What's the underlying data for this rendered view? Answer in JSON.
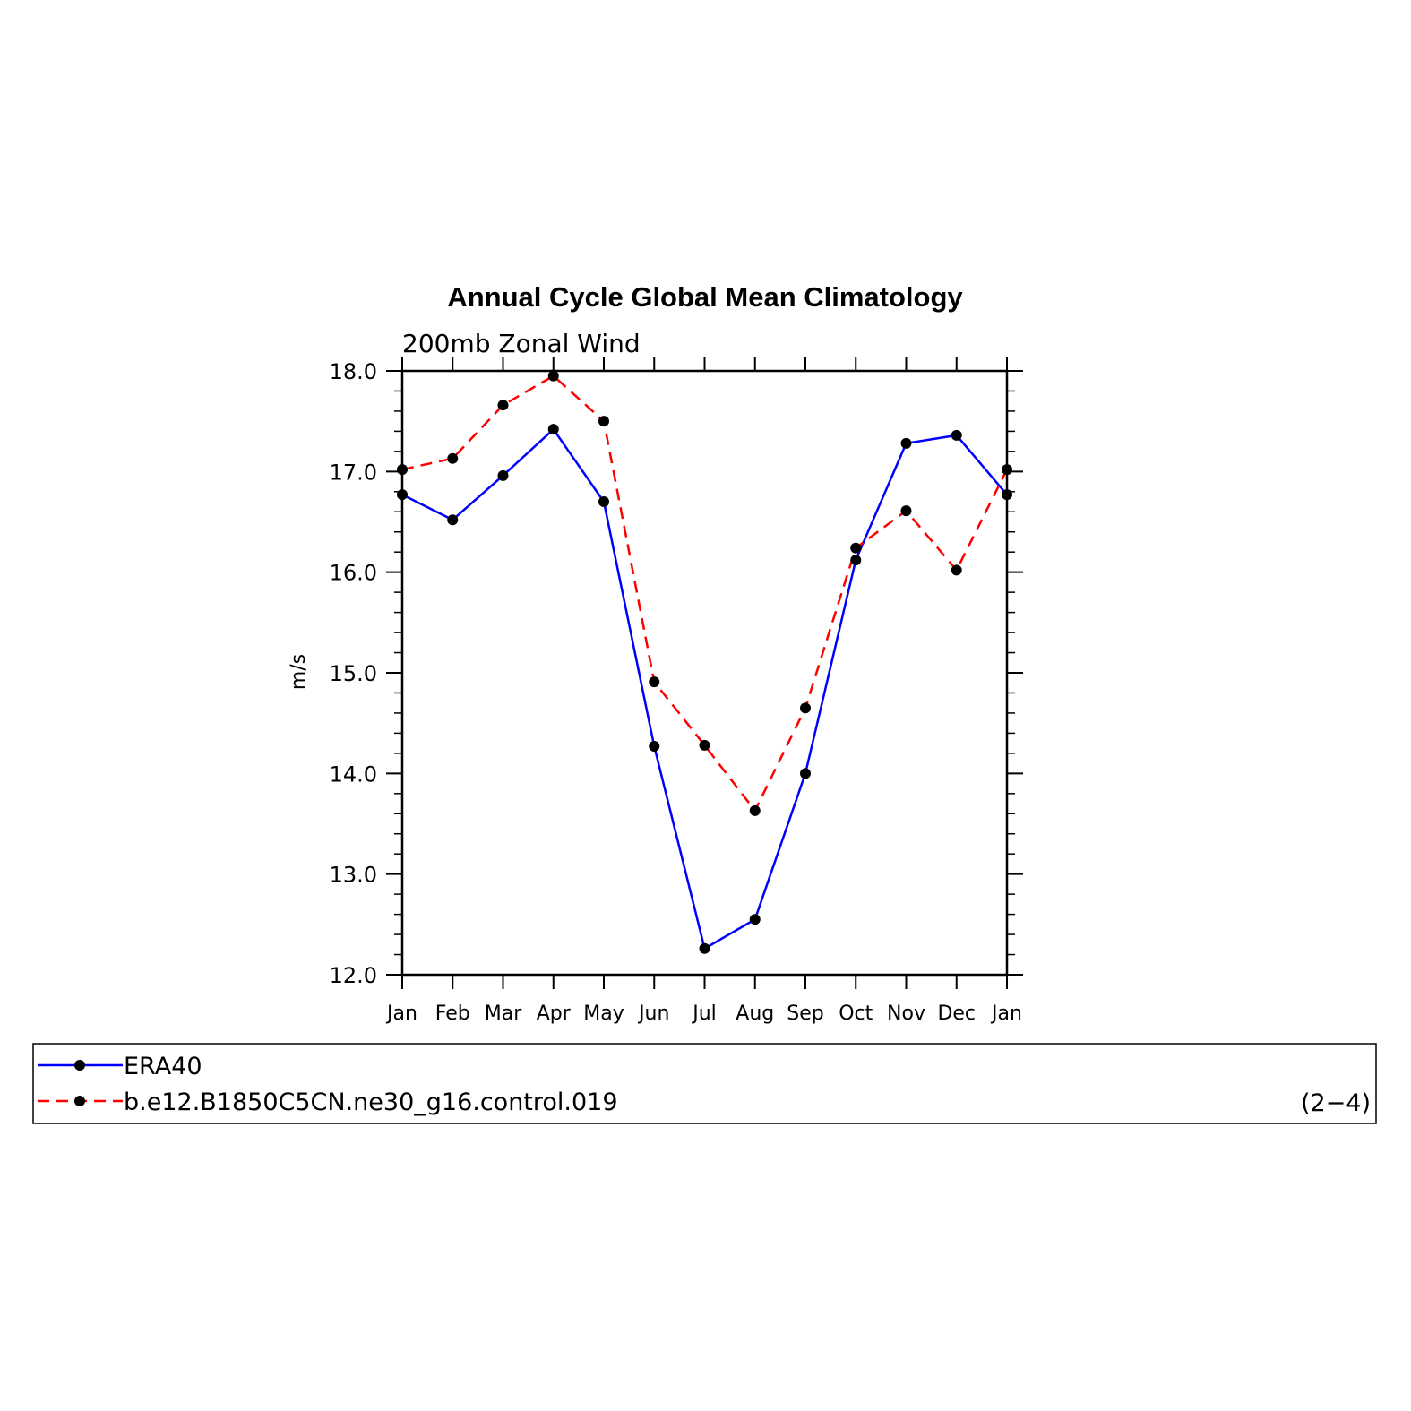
{
  "chart_data": {
    "type": "line",
    "title": "Annual Cycle Global Mean Climatology",
    "subtitle": "200mb Zonal Wind",
    "ylabel": "m/s",
    "xlabel": "",
    "categories": [
      "Jan",
      "Feb",
      "Mar",
      "Apr",
      "May",
      "Jun",
      "Jul",
      "Aug",
      "Sep",
      "Oct",
      "Nov",
      "Dec",
      "Jan"
    ],
    "ylim": [
      12.0,
      18.0
    ],
    "yticks": [
      "12.0",
      "13.0",
      "14.0",
      "15.0",
      "16.0",
      "17.0",
      "18.0"
    ],
    "grid": false,
    "legend_position": "bottom",
    "series": [
      {
        "name": "ERA40",
        "color": "#0000ff",
        "dash": "solid",
        "values": [
          16.77,
          16.52,
          16.96,
          17.42,
          16.7,
          14.27,
          12.26,
          12.55,
          14.0,
          16.12,
          17.28,
          17.36,
          16.77
        ]
      },
      {
        "name": "b.e12.B1850C5CN.ne30_g16.control.019",
        "color": "#ff0000",
        "dash": "dashed",
        "values": [
          17.02,
          17.13,
          17.66,
          17.95,
          17.5,
          14.91,
          14.28,
          13.63,
          14.65,
          16.24,
          16.61,
          16.02,
          17.02
        ]
      }
    ],
    "annotation": "(2−4)"
  }
}
